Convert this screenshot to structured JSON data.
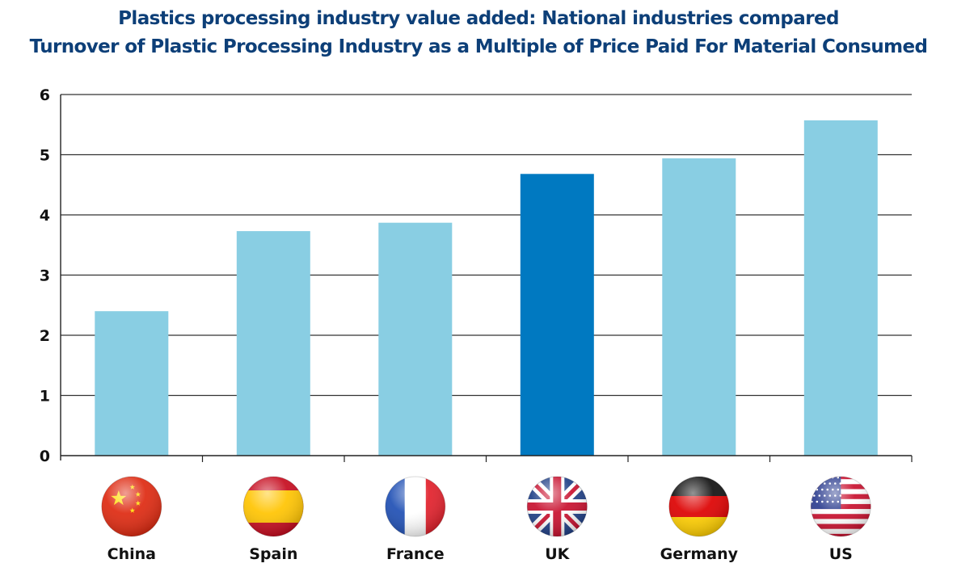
{
  "chart_data": {
    "type": "bar",
    "title": "Plastics processing industry value added: National industries compared",
    "subtitle": "Turnover of Plastic Processing Industry as a Multiple of Price Paid For Material Consumed",
    "categories": [
      "China",
      "Spain",
      "France",
      "UK",
      "Germany",
      "US"
    ],
    "values": [
      2.4,
      3.73,
      3.87,
      4.68,
      4.94,
      5.57
    ],
    "highlight_category": "UK",
    "ylim": [
      0,
      6
    ],
    "yticks": [
      "0",
      "1",
      "2",
      "3",
      "4",
      "5",
      "6"
    ],
    "xlabel": "",
    "ylabel": "",
    "grid": true,
    "flag_icons": [
      "china-flag-icon",
      "spain-flag-icon",
      "france-flag-icon",
      "uk-flag-icon",
      "germany-flag-icon",
      "us-flag-icon"
    ],
    "colors": {
      "bar": "#89cee3",
      "bar_highlight": "#0079c1",
      "title": "#0d3f78",
      "grid": "#333333"
    }
  }
}
